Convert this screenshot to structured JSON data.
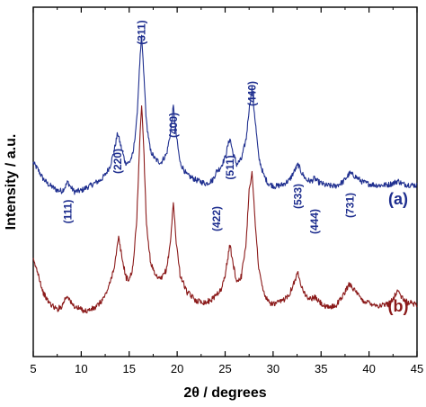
{
  "chart_data": {
    "type": "line",
    "xlabel": "2θ / degrees",
    "ylabel": "Intensity / a.u.",
    "xlim": [
      5,
      45
    ],
    "ylim": [
      0,
      100
    ],
    "x_ticks": [
      5,
      10,
      15,
      20,
      25,
      30,
      35,
      40,
      45
    ],
    "x_tick_labels": [
      "5",
      "10",
      "15",
      "20",
      "25",
      "30",
      "35",
      "40",
      "45"
    ],
    "y_ticks_labeled": false,
    "grid": false,
    "series": [
      {
        "name": "(a)",
        "color": "#1f2f8f",
        "peaks": [
          {
            "x": 8.6,
            "label": "(111)"
          },
          {
            "x": 13.8,
            "label": "(220)"
          },
          {
            "x": 16.3,
            "label": "(311)"
          },
          {
            "x": 19.6,
            "label": "(400)"
          },
          {
            "x": 24.1,
            "label": "(422)"
          },
          {
            "x": 25.5,
            "label": "(511)"
          },
          {
            "x": 27.8,
            "label": "(440)"
          },
          {
            "x": 32.6,
            "label": "(533)"
          },
          {
            "x": 34.3,
            "label": "(444)"
          },
          {
            "x": 38.0,
            "label": "(731)"
          }
        ],
        "points": [
          [
            5.0,
            55.5
          ],
          [
            5.5,
            53.5
          ],
          [
            6.0,
            51.0
          ],
          [
            6.5,
            49.5
          ],
          [
            7.0,
            48.5
          ],
          [
            7.5,
            47.6
          ],
          [
            8.0,
            47.4
          ],
          [
            8.3,
            48.5
          ],
          [
            8.6,
            50.0
          ],
          [
            8.9,
            48.5
          ],
          [
            9.3,
            47.2
          ],
          [
            10.0,
            47.5
          ],
          [
            10.5,
            48.3
          ],
          [
            11.0,
            49.0
          ],
          [
            11.5,
            49.8
          ],
          [
            12.0,
            50.5
          ],
          [
            12.5,
            52.0
          ],
          [
            13.0,
            54.5
          ],
          [
            13.4,
            58.5
          ],
          [
            13.8,
            64.0
          ],
          [
            14.2,
            59.5
          ],
          [
            14.6,
            55.5
          ],
          [
            15.0,
            55.5
          ],
          [
            15.4,
            58.0
          ],
          [
            15.8,
            68.0
          ],
          [
            16.1,
            84.0
          ],
          [
            16.3,
            91.5
          ],
          [
            16.5,
            82.0
          ],
          [
            16.8,
            67.0
          ],
          [
            17.2,
            59.0
          ],
          [
            17.7,
            56.5
          ],
          [
            18.3,
            55.5
          ],
          [
            18.9,
            58.0
          ],
          [
            19.3,
            64.0
          ],
          [
            19.6,
            71.5
          ],
          [
            19.9,
            63.5
          ],
          [
            20.3,
            55.5
          ],
          [
            21.0,
            52.0
          ],
          [
            22.0,
            50.5
          ],
          [
            23.0,
            49.5
          ],
          [
            23.7,
            50.5
          ],
          [
            24.1,
            53.0
          ],
          [
            24.5,
            54.0
          ],
          [
            25.0,
            57.0
          ],
          [
            25.3,
            60.5
          ],
          [
            25.5,
            62.5
          ],
          [
            25.8,
            58.5
          ],
          [
            26.2,
            55.0
          ],
          [
            26.7,
            56.5
          ],
          [
            27.2,
            62.5
          ],
          [
            27.5,
            71.0
          ],
          [
            27.8,
            76.5
          ],
          [
            28.1,
            68.5
          ],
          [
            28.5,
            57.0
          ],
          [
            29.0,
            52.0
          ],
          [
            29.5,
            49.5
          ],
          [
            30.2,
            48.7
          ],
          [
            31.0,
            49.2
          ],
          [
            31.7,
            50.5
          ],
          [
            32.3,
            53.5
          ],
          [
            32.6,
            55.0
          ],
          [
            33.0,
            52.5
          ],
          [
            33.5,
            50.5
          ],
          [
            34.0,
            50.2
          ],
          [
            34.3,
            51.0
          ],
          [
            34.7,
            50.0
          ],
          [
            35.5,
            49.0
          ],
          [
            36.5,
            48.8
          ],
          [
            37.3,
            50.0
          ],
          [
            38.0,
            52.5
          ],
          [
            38.6,
            51.5
          ],
          [
            39.3,
            50.0
          ],
          [
            40.0,
            49.4
          ],
          [
            41.0,
            49.0
          ],
          [
            42.0,
            49.2
          ],
          [
            42.6,
            49.7
          ],
          [
            43.0,
            50.3
          ],
          [
            43.5,
            49.4
          ],
          [
            44.0,
            49.2
          ],
          [
            45.0,
            49.0
          ]
        ]
      },
      {
        "name": "(b)",
        "color": "#8b1a1a",
        "points": [
          [
            5.0,
            27.5
          ],
          [
            5.5,
            24.0
          ],
          [
            6.0,
            18.5
          ],
          [
            6.5,
            16.0
          ],
          [
            7.0,
            14.5
          ],
          [
            7.5,
            13.5
          ],
          [
            8.0,
            14.5
          ],
          [
            8.3,
            16.5
          ],
          [
            8.6,
            17.5
          ],
          [
            9.0,
            15.0
          ],
          [
            9.5,
            14.0
          ],
          [
            10.0,
            13.5
          ],
          [
            10.5,
            13.0
          ],
          [
            11.0,
            13.5
          ],
          [
            11.5,
            14.0
          ],
          [
            12.0,
            15.5
          ],
          [
            12.5,
            17.5
          ],
          [
            13.0,
            21.0
          ],
          [
            13.5,
            26.5
          ],
          [
            13.9,
            34.0
          ],
          [
            14.3,
            27.5
          ],
          [
            14.7,
            22.5
          ],
          [
            15.0,
            22.0
          ],
          [
            15.4,
            25.5
          ],
          [
            15.8,
            40.0
          ],
          [
            16.1,
            62.0
          ],
          [
            16.3,
            72.0
          ],
          [
            16.5,
            61.0
          ],
          [
            16.8,
            38.0
          ],
          [
            17.2,
            27.5
          ],
          [
            17.7,
            23.0
          ],
          [
            18.3,
            22.0
          ],
          [
            18.9,
            25.0
          ],
          [
            19.3,
            33.0
          ],
          [
            19.6,
            44.0
          ],
          [
            19.9,
            33.0
          ],
          [
            20.3,
            23.5
          ],
          [
            21.0,
            18.5
          ],
          [
            22.0,
            16.0
          ],
          [
            23.0,
            15.5
          ],
          [
            23.7,
            16.5
          ],
          [
            24.1,
            18.0
          ],
          [
            24.6,
            19.0
          ],
          [
            25.0,
            23.5
          ],
          [
            25.3,
            28.5
          ],
          [
            25.5,
            32.0
          ],
          [
            25.8,
            27.0
          ],
          [
            26.2,
            21.5
          ],
          [
            26.7,
            23.0
          ],
          [
            27.2,
            33.0
          ],
          [
            27.5,
            48.0
          ],
          [
            27.8,
            52.5
          ],
          [
            28.1,
            40.0
          ],
          [
            28.5,
            25.0
          ],
          [
            29.0,
            18.5
          ],
          [
            29.5,
            15.5
          ],
          [
            30.2,
            15.0
          ],
          [
            31.0,
            16.0
          ],
          [
            31.7,
            18.0
          ],
          [
            32.3,
            22.0
          ],
          [
            32.6,
            24.0
          ],
          [
            33.0,
            20.0
          ],
          [
            33.5,
            17.0
          ],
          [
            34.0,
            16.5
          ],
          [
            34.3,
            17.0
          ],
          [
            34.7,
            16.0
          ],
          [
            35.5,
            14.0
          ],
          [
            36.5,
            14.5
          ],
          [
            37.3,
            17.5
          ],
          [
            38.0,
            21.0
          ],
          [
            38.6,
            18.5
          ],
          [
            39.3,
            16.0
          ],
          [
            40.0,
            15.5
          ],
          [
            41.0,
            14.5
          ],
          [
            42.0,
            15.0
          ],
          [
            42.6,
            17.0
          ],
          [
            43.0,
            19.0
          ],
          [
            43.5,
            16.5
          ],
          [
            44.0,
            15.5
          ],
          [
            45.0,
            15.0
          ]
        ]
      }
    ]
  }
}
